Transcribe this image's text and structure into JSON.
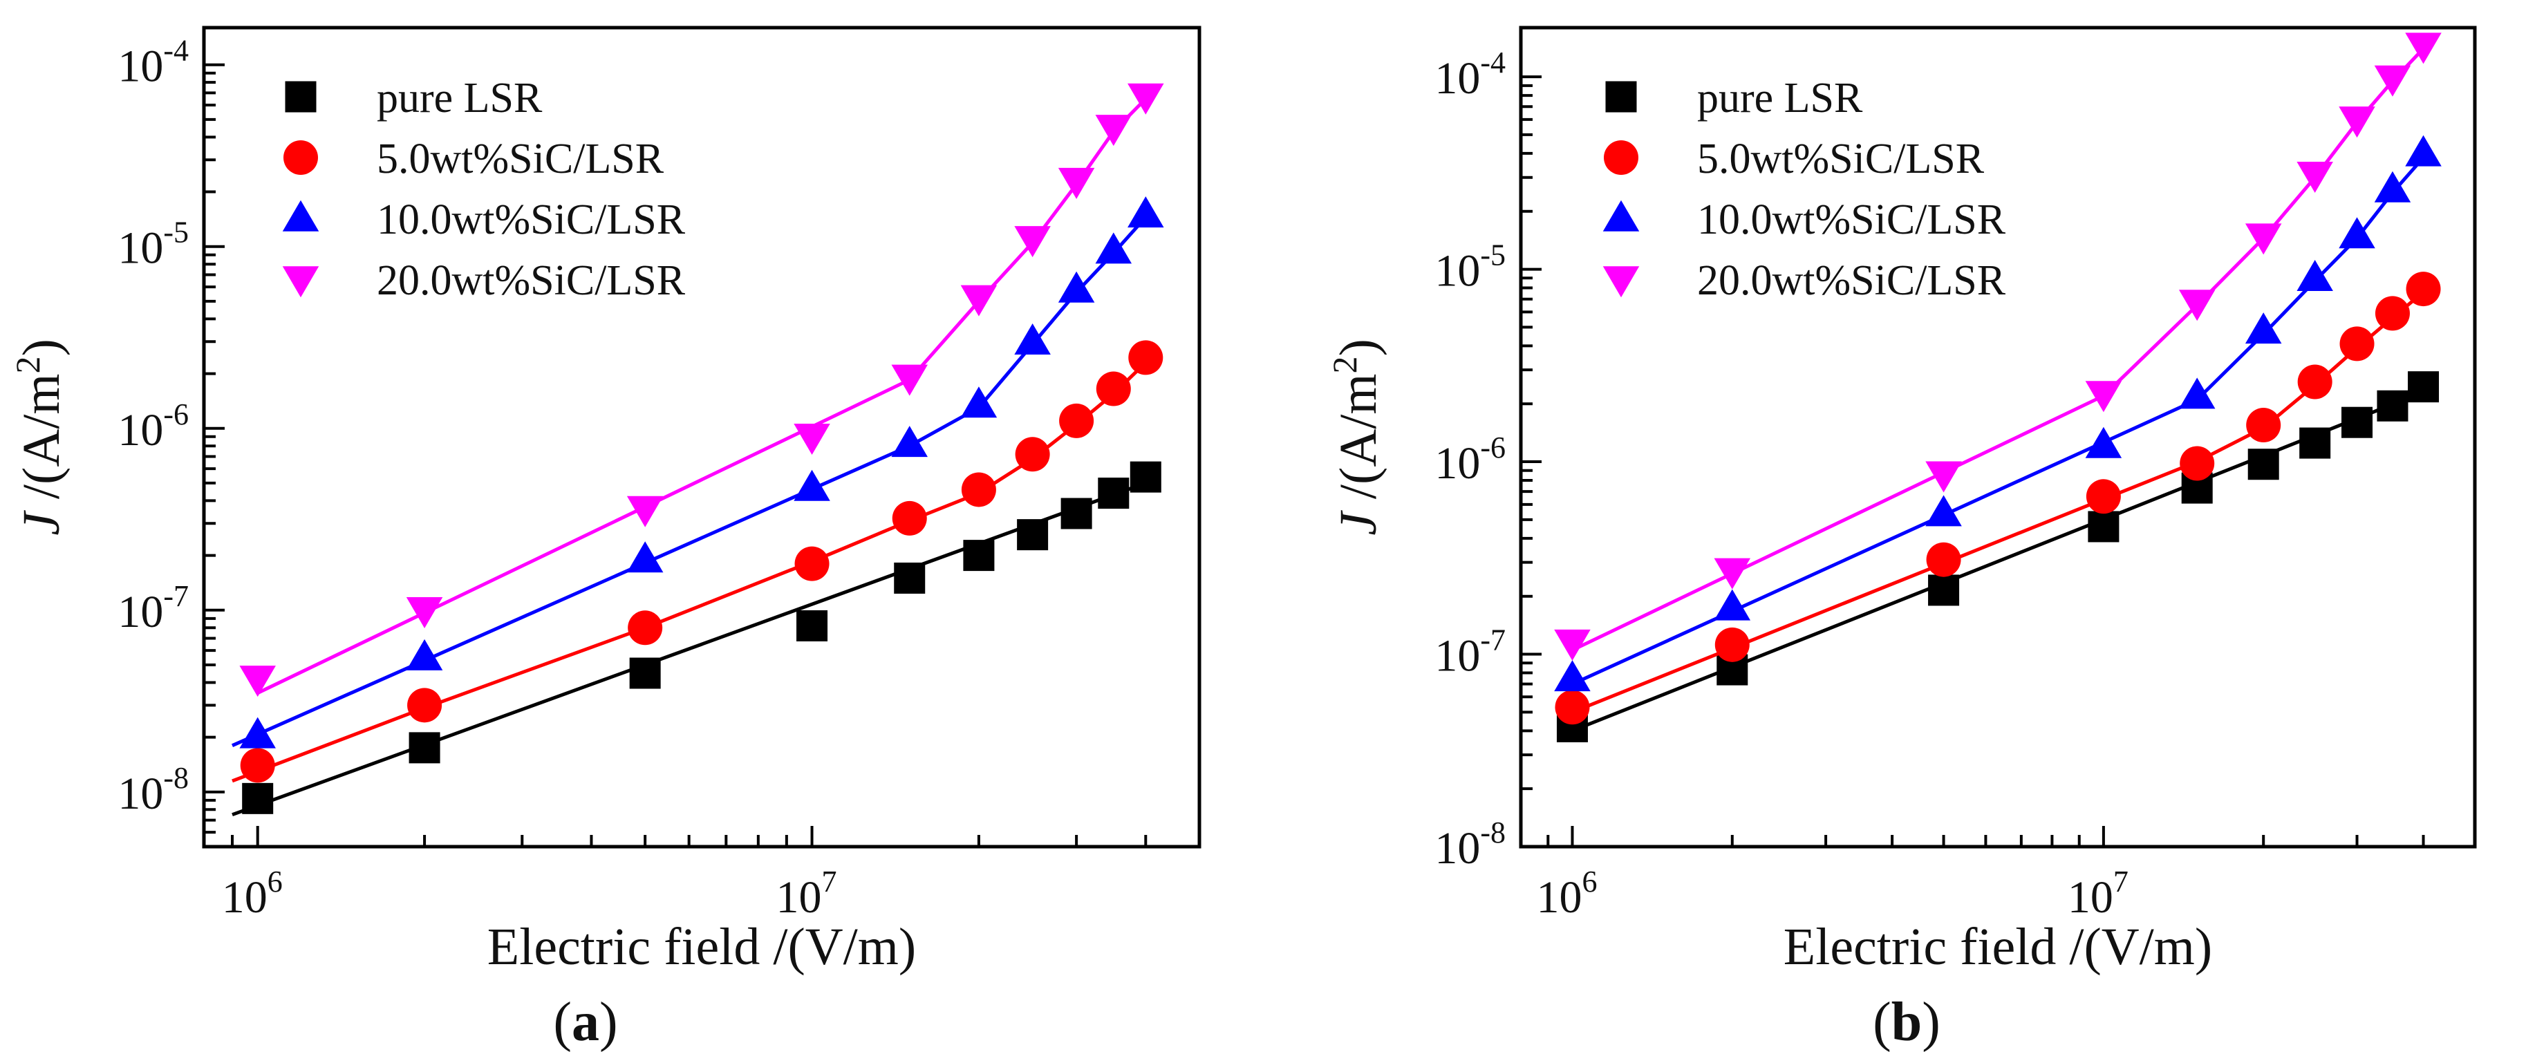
{
  "chart_data": [
    {
      "type": "scatter",
      "panel_label": "(a)",
      "panel_letter": "a",
      "xlabel": "Electric field /(V/m)",
      "ylabel": "J /(A/m²)",
      "ylabel_italic": "J",
      "ylabel_rest": " /(A/m",
      "ylabel_sup": "2",
      "ylabel_close": ")",
      "x_scale": "log",
      "y_scale": "log",
      "xlim": [
        800000,
        50000000
      ],
      "ylim": [
        5e-09,
        0.00016
      ],
      "x_ticks": [
        {
          "value": 1000000,
          "base": "10",
          "exp": "6"
        },
        {
          "value": 10000000,
          "base": "10",
          "exp": "7"
        }
      ],
      "y_ticks": [
        {
          "value": 1e-08,
          "base": "10",
          "exp": "-8"
        },
        {
          "value": 1e-07,
          "base": "10",
          "exp": "-7"
        },
        {
          "value": 1e-06,
          "base": "10",
          "exp": "-6"
        },
        {
          "value": 1e-05,
          "base": "10",
          "exp": "-5"
        },
        {
          "value": 0.0001,
          "base": "10",
          "exp": "-4"
        }
      ],
      "grid": false,
      "legend_position": "top-left",
      "series": [
        {
          "name": "pure LSR",
          "marker": "square",
          "color": "#000000",
          "x": [
            1000000,
            2000000,
            5000000,
            10000000,
            15000000,
            20000000,
            25000000,
            30000000,
            35000000,
            40000000
          ],
          "y": [
            9.2e-09,
            1.75e-08,
            4.5e-08,
            8.2e-08,
            1.5e-07,
            2e-07,
            2.6e-07,
            3.4e-07,
            4.4e-07,
            5.4e-07
          ],
          "fit_x": [
            900000,
            40000000
          ],
          "fit_y": [
            7.5e-09,
            5e-07
          ]
        },
        {
          "name": "5.0wt%SiC/LSR",
          "marker": "circle",
          "color": "#ff0000",
          "x": [
            1000000,
            2000000,
            5000000,
            10000000,
            15000000,
            20000000,
            25000000,
            30000000,
            35000000,
            40000000
          ],
          "y": [
            1.4e-08,
            3e-08,
            8e-08,
            1.8e-07,
            3.2e-07,
            4.6e-07,
            7.2e-07,
            1.1e-06,
            1.65e-06,
            2.45e-06
          ],
          "fit_x": [
            900000,
            2000000,
            5000000,
            10000000,
            15000000,
            20000000,
            25000000,
            30000000,
            35000000,
            40000000
          ],
          "fit_y": [
            1.15e-08,
            2.9e-08,
            8e-08,
            1.85e-07,
            3.1e-07,
            4.4e-07,
            6.8e-07,
            1.05e-06,
            1.55e-06,
            2.3e-06
          ]
        },
        {
          "name": "10.0wt%SiC/LSR",
          "marker": "triangle-up",
          "color": "#0000ff",
          "x": [
            1000000,
            2000000,
            5000000,
            10000000,
            15000000,
            20000000,
            25000000,
            30000000,
            35000000,
            40000000
          ],
          "y": [
            2.05e-08,
            5.5e-08,
            1.9e-07,
            4.7e-07,
            8.2e-07,
            1.35e-06,
            3e-06,
            5.8e-06,
            9.5e-06,
            1.5e-05
          ],
          "fit_x": [
            900000,
            15000000,
            20000000,
            25000000,
            30000000,
            35000000,
            40000000
          ],
          "fit_y": [
            1.8e-08,
            8e-07,
            1.3e-06,
            2.9e-06,
            5.6e-06,
            9.2e-06,
            1.45e-05
          ]
        },
        {
          "name": "20.0wt%SiC/LSR",
          "marker": "triangle-down",
          "color": "#ff00ff",
          "x": [
            1000000,
            2000000,
            5000000,
            10000000,
            15000000,
            20000000,
            25000000,
            30000000,
            35000000,
            40000000
          ],
          "y": [
            4.2e-08,
            1e-07,
            3.6e-07,
            9e-07,
            1.9e-06,
            5.2e-06,
            1.1e-05,
            2.3e-05,
            4.5e-05,
            6.7e-05
          ],
          "fit_x": [
            1000000,
            15000000,
            20000000,
            25000000,
            30000000,
            35000000,
            40000000
          ],
          "fit_y": [
            3.5e-08,
            1.85e-06,
            5e-06,
            1.05e-05,
            2.2e-05,
            4.3e-05,
            6.5e-05
          ]
        }
      ]
    },
    {
      "type": "scatter",
      "panel_label": "(b)",
      "panel_letter": "b",
      "xlabel": "Electric field /(V/m)",
      "ylabel": "J /(A/m²)",
      "ylabel_italic": "J",
      "ylabel_rest": " /(A/m",
      "ylabel_sup": "2",
      "ylabel_close": ")",
      "x_scale": "log",
      "y_scale": "log",
      "xlim": [
        800000,
        50000000
      ],
      "ylim": [
        1e-08,
        0.00018
      ],
      "x_ticks": [
        {
          "value": 1000000,
          "base": "10",
          "exp": "6"
        },
        {
          "value": 10000000,
          "base": "10",
          "exp": "7"
        }
      ],
      "y_ticks": [
        {
          "value": 1e-08,
          "base": "10",
          "exp": "-8"
        },
        {
          "value": 1e-07,
          "base": "10",
          "exp": "-7"
        },
        {
          "value": 1e-06,
          "base": "10",
          "exp": "-6"
        },
        {
          "value": 1e-05,
          "base": "10",
          "exp": "-5"
        },
        {
          "value": 0.0001,
          "base": "10",
          "exp": "-4"
        }
      ],
      "grid": false,
      "legend_position": "top-left",
      "series": [
        {
          "name": "pure LSR",
          "marker": "square",
          "color": "#000000",
          "x": [
            1000000,
            2000000,
            5000000,
            10000000,
            15000000,
            20000000,
            25000000,
            30000000,
            35000000,
            40000000
          ],
          "y": [
            4.2e-08,
            8.3e-08,
            2.15e-07,
            4.6e-07,
            7.3e-07,
            9.7e-07,
            1.25e-06,
            1.6e-06,
            1.95e-06,
            2.45e-06
          ],
          "fit_x": [
            1000000,
            40000000
          ],
          "fit_y": [
            4e-08,
            2.3e-06
          ]
        },
        {
          "name": "5.0wt%SiC/LSR",
          "marker": "circle",
          "color": "#ff0000",
          "x": [
            1000000,
            2000000,
            5000000,
            10000000,
            15000000,
            20000000,
            25000000,
            30000000,
            35000000,
            40000000
          ],
          "y": [
            5.3e-08,
            1.12e-07,
            3.1e-07,
            6.6e-07,
            9.8e-07,
            1.55e-06,
            2.6e-06,
            4.1e-06,
            5.9e-06,
            7.9e-06
          ],
          "fit_x": [
            1000000,
            15000000,
            20000000,
            25000000,
            30000000,
            35000000,
            40000000
          ],
          "fit_y": [
            5e-08,
            1e-06,
            1.5e-06,
            2.5e-06,
            3.9e-06,
            5.6e-06,
            7.6e-06
          ]
        },
        {
          "name": "10.0wt%SiC/LSR",
          "marker": "triangle-up",
          "color": "#0000ff",
          "x": [
            1000000,
            2000000,
            5000000,
            10000000,
            15000000,
            20000000,
            25000000,
            30000000,
            35000000,
            40000000
          ],
          "y": [
            7.5e-08,
            1.75e-07,
            5.4e-07,
            1.22e-06,
            2.2e-06,
            4.8e-06,
            9e-06,
            1.5e-05,
            2.6e-05,
            4e-05
          ],
          "fit_x": [
            1000000,
            15000000,
            20000000,
            25000000,
            30000000,
            35000000,
            40000000
          ],
          "fit_y": [
            7e-08,
            2.1e-06,
            4.6e-06,
            8.7e-06,
            1.45e-05,
            2.5e-05,
            3.8e-05
          ]
        },
        {
          "name": "20.0wt%SiC/LSR",
          "marker": "triangle-down",
          "color": "#ff00ff",
          "x": [
            1000000,
            2000000,
            5000000,
            10000000,
            15000000,
            20000000,
            25000000,
            30000000,
            35000000,
            40000000
          ],
          "y": [
            1.15e-07,
            2.7e-07,
            8.6e-07,
            2.25e-06,
            6.7e-06,
            1.48e-05,
            3.1e-05,
            6e-05,
            9.8e-05,
            0.000145
          ],
          "fit_x": [
            1000000,
            10000000,
            15000000,
            20000000,
            25000000,
            30000000,
            35000000,
            40000000
          ],
          "fit_y": [
            1.05e-07,
            2.2e-06,
            6.5e-06,
            1.45e-05,
            3e-05,
            5.8e-05,
            9.5e-05,
            0.00014
          ]
        }
      ]
    }
  ]
}
